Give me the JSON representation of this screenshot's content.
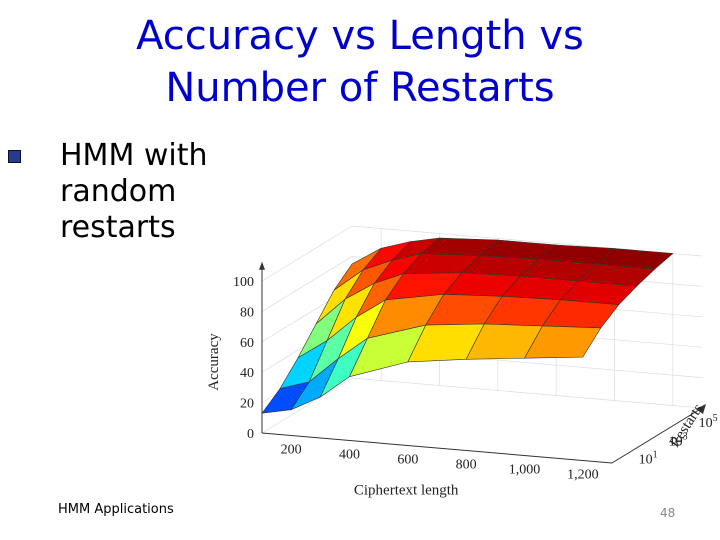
{
  "slide": {
    "title_line1": "Accuracy vs Length vs",
    "title_line2": "Number of Restarts",
    "bullet_line1": "HMM with",
    "bullet_line2": "random",
    "bullet_line3": "restarts",
    "footer": "HMM Applications",
    "page_number": "48"
  },
  "colors": {
    "title": "#0000cc",
    "bullet": "#2a3a8c"
  },
  "chart_data": {
    "type": "surface3d",
    "xlabel": "Ciphertext length",
    "ylabel": "Restarts",
    "zlabel": "Accuracy",
    "x": [
      100,
      200,
      300,
      400,
      600,
      800,
      1000,
      1200
    ],
    "x_tick_labels": [
      "200",
      "400",
      "600",
      "800",
      "1,000",
      "1,200"
    ],
    "x_tick_values": [
      200,
      400,
      600,
      800,
      1000,
      1200
    ],
    "y_tick_labels": [
      "10^1",
      "10^3",
      "10^5"
    ],
    "z_tick_labels": [
      "0",
      "20",
      "40",
      "60",
      "80",
      "100"
    ],
    "zlim": [
      0,
      100
    ],
    "colormap": "jet",
    "restart_levels": [
      "1",
      "10",
      "10^2",
      "10^3",
      "10^4",
      "10^5"
    ],
    "accuracy": [
      [
        13,
        17,
        27,
        42,
        55,
        60,
        64,
        68
      ],
      [
        22,
        28,
        45,
        60,
        72,
        76,
        78,
        80
      ],
      [
        35,
        48,
        65,
        78,
        85,
        87,
        88,
        88
      ],
      [
        50,
        68,
        80,
        88,
        92,
        93,
        93,
        93
      ],
      [
        65,
        80,
        88,
        94,
        96,
        97,
        97,
        97
      ],
      [
        75,
        87,
        93,
        97,
        99,
        99,
        100,
        100
      ]
    ]
  }
}
